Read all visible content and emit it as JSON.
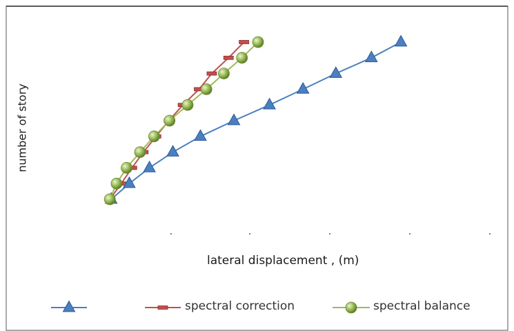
{
  "chart_data": {
    "type": "line",
    "title": "",
    "xlabel": "lateral displacement , (m)",
    "ylabel": "number of story",
    "x_tick_labels": [
      ".",
      ".",
      ".",
      ".",
      "."
    ],
    "legend_position": "bottom",
    "grid": false,
    "series": [
      {
        "name": "",
        "color": "#4a7fc1",
        "marker": "triangle",
        "points": [
          [
            0.03,
            1
          ],
          [
            0.057,
            2
          ],
          [
            0.087,
            3
          ],
          [
            0.122,
            4
          ],
          [
            0.163,
            5
          ],
          [
            0.213,
            6
          ],
          [
            0.266,
            7
          ],
          [
            0.316,
            8
          ],
          [
            0.365,
            9
          ],
          [
            0.418,
            10
          ],
          [
            0.462,
            11
          ]
        ]
      },
      {
        "name": "spectral correction",
        "color": "#c0504d",
        "marker": "dash",
        "points": [
          [
            0.028,
            1
          ],
          [
            0.045,
            2
          ],
          [
            0.061,
            3
          ],
          [
            0.078,
            4
          ],
          [
            0.097,
            5
          ],
          [
            0.116,
            6
          ],
          [
            0.137,
            7
          ],
          [
            0.161,
            8
          ],
          [
            0.18,
            9
          ],
          [
            0.205,
            10
          ],
          [
            0.228,
            11
          ]
        ]
      },
      {
        "name": "spectral balance",
        "color": "#9bbb59",
        "marker": "sphere",
        "points": [
          [
            0.028,
            1
          ],
          [
            0.038,
            2
          ],
          [
            0.053,
            3
          ],
          [
            0.073,
            4
          ],
          [
            0.094,
            5
          ],
          [
            0.117,
            6
          ],
          [
            0.144,
            7
          ],
          [
            0.172,
            8
          ],
          [
            0.198,
            9
          ],
          [
            0.225,
            10
          ],
          [
            0.249,
            11
          ]
        ]
      }
    ]
  }
}
